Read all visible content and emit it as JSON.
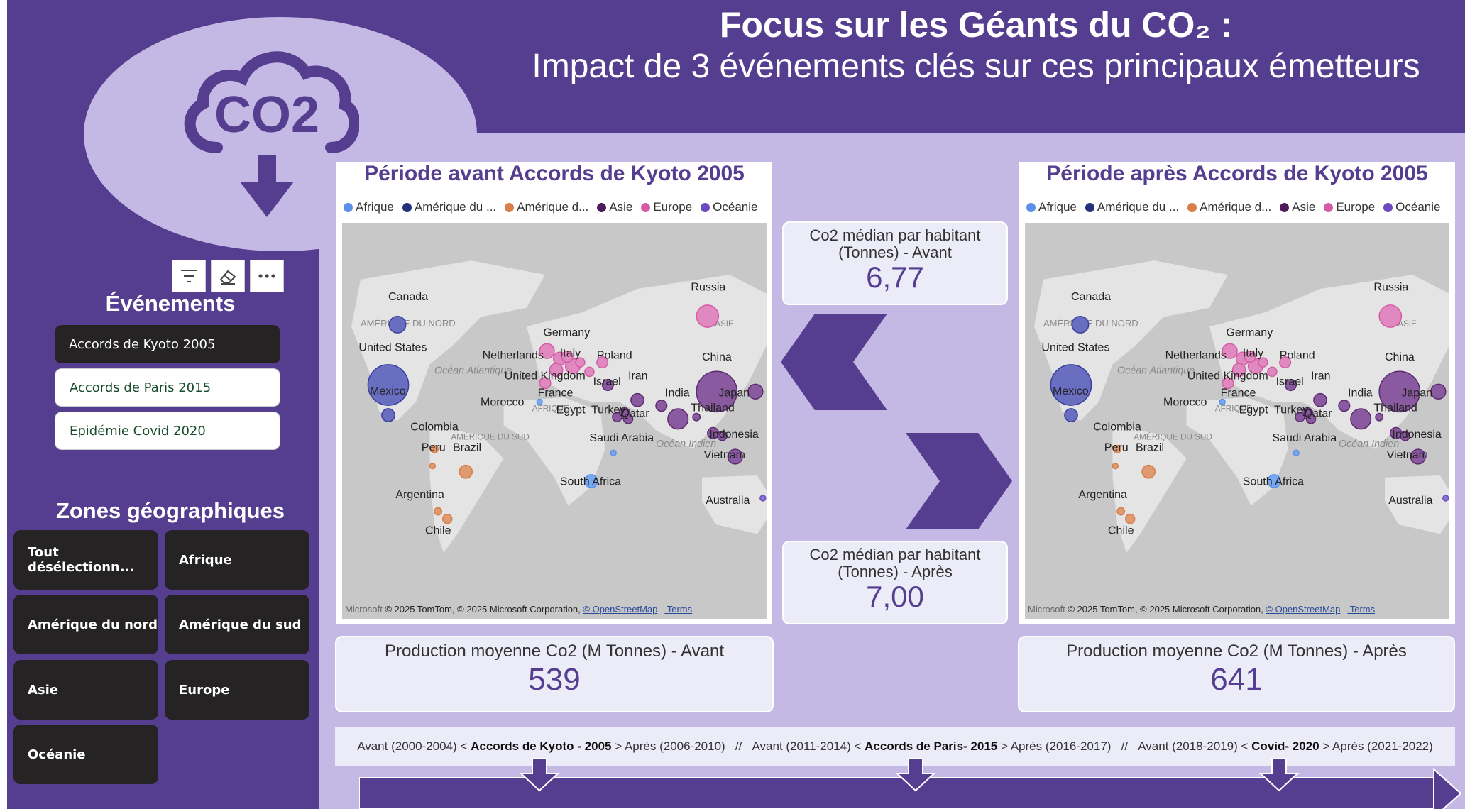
{
  "header": {
    "title": "Focus sur les Géants du CO₂ :",
    "subtitle": "Impact de 3 événements clés sur ces principaux émetteurs"
  },
  "logo": {
    "text": "CO2",
    "icon": "co2-cloud-download-icon"
  },
  "toolbar": {
    "icons": [
      "filter-icon",
      "eraser-icon",
      "more-options-icon"
    ]
  },
  "events": {
    "heading": "Événements",
    "items": [
      {
        "label": "Accords de Kyoto 2005",
        "selected": true
      },
      {
        "label": "Accords de Paris 2015",
        "selected": false
      },
      {
        "label": "Epidémie Covid 2020",
        "selected": false
      }
    ]
  },
  "zones": {
    "heading": "Zones géographiques",
    "items": [
      "Tout désélectionn...",
      "Afrique",
      "Amérique du nord",
      "Amérique du sud",
      "Asie",
      "Europe",
      "Océanie"
    ]
  },
  "legend": {
    "items": [
      {
        "label": "Afrique",
        "color": "#5b8fe8"
      },
      {
        "label": "Amérique du ...",
        "color": "#24307a"
      },
      {
        "label": "Amérique d...",
        "color": "#d77e4a"
      },
      {
        "label": "Asie",
        "color": "#4d1a5e"
      },
      {
        "label": "Europe",
        "color": "#d45ba4"
      },
      {
        "label": "Océanie",
        "color": "#6a4cc0"
      }
    ]
  },
  "map_before": {
    "title": "Période avant Accords de Kyoto 2005",
    "attribution_logo": "Microsoft",
    "attribution": "© 2025 TomTom, © 2025 Microsoft Corporation, ",
    "osm": "© OpenStreetMap",
    "terms": "Terms",
    "regions": {
      "na": "AMÉRIQUE DU NORD",
      "sa": "AMÉRIQUE DU SUD",
      "af": "AFRIQUE",
      "as": "ASIE",
      "ocean_atl": "Océan Atlantique",
      "ocean_ind": "Océan Indien"
    }
  },
  "map_after": {
    "title": "Période après Accords de Kyoto 2005",
    "attribution_logo": "Microsoft",
    "attribution": "© 2025 TomTom, © 2025 Microsoft Corporation, ",
    "osm": "© OpenStreetMap",
    "terms": "Terms",
    "regions": {
      "na": "AMÉRIQUE DU NORD",
      "sa": "AMÉRIQUE DU SUD",
      "af": "AFRIQUE",
      "as": "ASIE",
      "ocean_atl": "Océan Atlantique",
      "ocean_ind": "Océan Indien"
    }
  },
  "countries": [
    "Canada",
    "United States",
    "Mexico",
    "Colombia",
    "Peru",
    "Brazil",
    "Argentina",
    "Chile",
    "Germany",
    "Netherlands",
    "Italy",
    "United Kingdom",
    "France",
    "Poland",
    "Israel",
    "Iran",
    "Morocco",
    "Egypt",
    "Turkey",
    "Qatar",
    "Saudi Arabia",
    "South Africa",
    "India",
    "Russia",
    "China",
    "Japan",
    "Thailand",
    "Indonesia",
    "Vietnam",
    "Australia"
  ],
  "kpis": {
    "median_before": {
      "label": "Co2 médian par habitant (Tonnes) - Avant",
      "value": "6,77"
    },
    "median_after": {
      "label": "Co2 médian par habitant (Tonnes) - Après",
      "value": "7,00"
    },
    "avg_before": {
      "label": "Production moyenne Co2 (M Tonnes) - Avant",
      "value": "539"
    },
    "avg_after": {
      "label": "Production moyenne Co2 (M Tonnes) - Après",
      "value": "641"
    }
  },
  "timeline": {
    "p1_before": "Avant (2000-2004) < ",
    "p1_event": "Accords de Kyoto - 2005",
    "p1_after": " > Après (2006-2010)",
    "sep": "   //   ",
    "p2_before": "Avant (2011-2014) < ",
    "p2_event": "Accords de Paris- 2015",
    "p2_after": " > Après (2016-2017)",
    "p3_before": "Avant (2018-2019) < ",
    "p3_event": "Covid- 2020",
    "p3_after": " > Après (2021-2022)"
  },
  "colors": {
    "primary": "#553d8f",
    "light": "#c4b8e4",
    "dark_button": "#252324"
  }
}
